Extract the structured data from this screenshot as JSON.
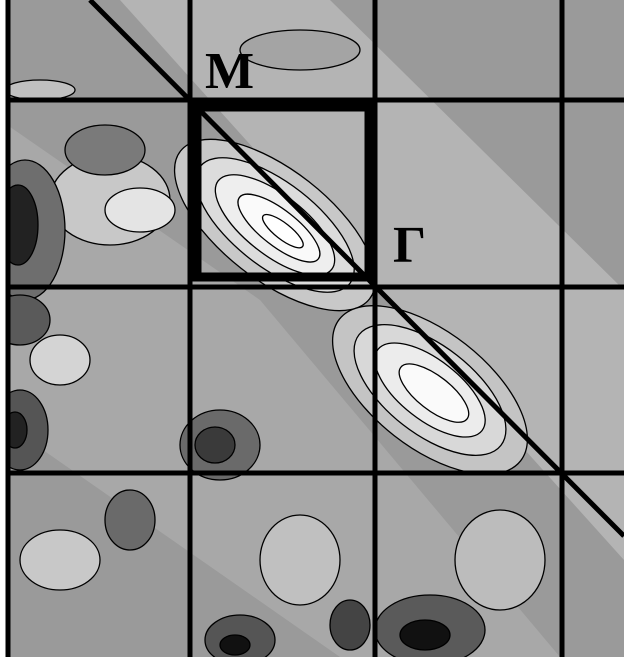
{
  "labels": {
    "m_point": "M",
    "gamma_point": "Γ"
  }
}
